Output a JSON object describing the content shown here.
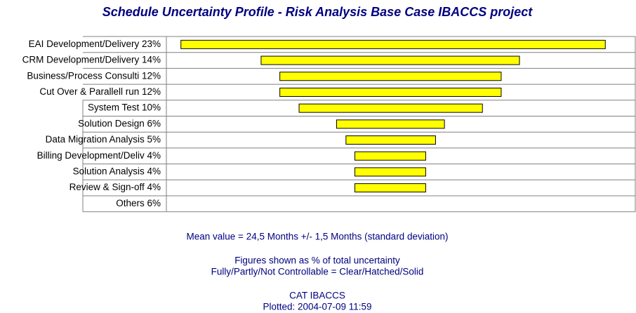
{
  "chart_data": {
    "type": "range-bar",
    "title": "Schedule Uncertainty Profile - Risk Analysis Base Case IBACCS project",
    "categories": [
      "EAI Development/Delivery 23%",
      "CRM Development/Delivery 14%",
      "Business/Process Consulti 12%",
      "Cut Over & Parallell run 12%",
      "System Test 10%",
      "Solution Design 6%",
      "Data Migration Analysis 5%",
      "Billing Development/Deliv 4%",
      "Solution Analysis 4%",
      "Review & Sign-off 4%",
      "Others 6%"
    ],
    "low": [
      3.1,
      20.2,
      24.2,
      24.2,
      28.3,
      36.3,
      38.3,
      40.2,
      40.2,
      40.2,
      null
    ],
    "high": [
      93.6,
      75.3,
      71.4,
      71.4,
      67.4,
      59.3,
      57.4,
      55.3,
      55.3,
      55.3,
      null
    ],
    "xlim": [
      0,
      100
    ],
    "color": "#ffff00",
    "notes": [
      "Mean value = 24,5 Months  +/- 1,5 Months (standard deviation)",
      "Figures shown as % of total uncertainty",
      "Fully/Partly/Not Controllable = Clear/Hatched/Solid",
      "CAT IBACCS",
      "Plotted: 2004-07-09  11:59"
    ]
  }
}
